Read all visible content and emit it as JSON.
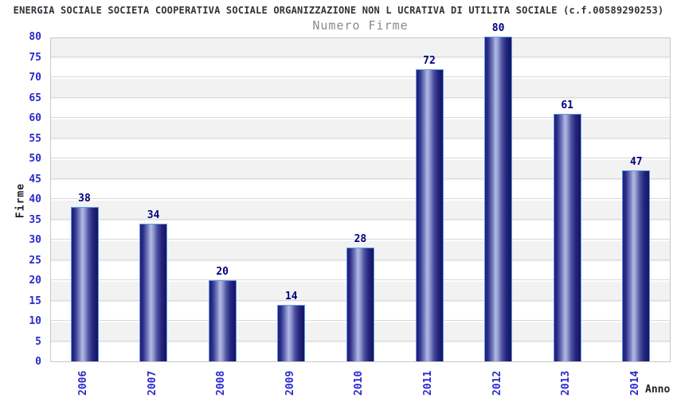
{
  "header": {
    "title": "ENERGIA SOCIALE SOCIETA COOPERATIVA SOCIALE ORGANIZZAZIONE NON L UCRATIVA DI UTILITA SOCIALE (c.f.00589290253)",
    "subtitle": "Numero Firme"
  },
  "chart_data": {
    "type": "bar",
    "title": "Numero Firme",
    "categories": [
      "2006",
      "2007",
      "2008",
      "2009",
      "2010",
      "2011",
      "2012",
      "2013",
      "2014"
    ],
    "values": [
      38,
      34,
      20,
      14,
      28,
      72,
      80,
      61,
      47
    ],
    "xlabel": "Anno",
    "ylabel": "Firme",
    "ylim": [
      0,
      80
    ],
    "ytick_step": 5,
    "grid": true,
    "legend": "none",
    "plot_bands": "alternating 5-unit horizontal bands, gray and white",
    "bar_style": "navy cylinder gradient with light blue border"
  },
  "colors": {
    "title": "#32323a",
    "subtitle": "#8a8a8a",
    "axis_tick": "#2a2acc",
    "value_label": "#000080",
    "axis_title": "#222226",
    "band_gray": "#f2f2f2",
    "gridline": "#d9d9d9",
    "plot_border": "#c9c9c9",
    "bar_dark": "#1d1d76",
    "bar_highlight": "#b2b8e3",
    "bar_border": "#5f9bec"
  }
}
